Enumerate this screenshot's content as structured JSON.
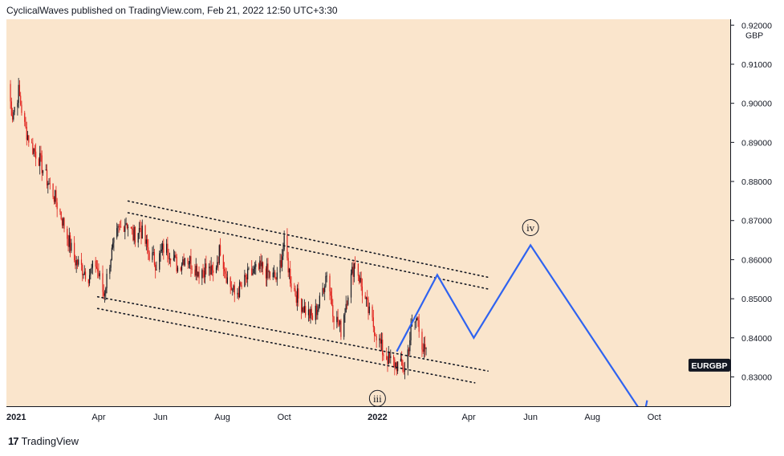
{
  "header": {
    "publisher_line": "CyclicalWaves published on TradingView.com, Feb 21, 2022 12:50 UTC+3:30"
  },
  "footer": {
    "brand": "TradingView",
    "logo_glyph": "17"
  },
  "colors": {
    "plot_background": "#fae5cc",
    "candle_up": "#131722",
    "candle_down": "#e0201b",
    "projection_line": "#2f63f0",
    "channel_lines": "#131722",
    "symbol_badge_bg": "#131722",
    "symbol_badge_text": "#ffffff"
  },
  "chart_data": {
    "type": "candlestick",
    "symbol": "EURGBP",
    "currency_unit": "GBP",
    "yaxis": {
      "range": [
        0.8225,
        0.9215
      ],
      "tick_values": [
        0.83,
        0.84,
        0.85,
        0.86,
        0.87,
        0.88,
        0.89,
        0.9,
        0.91,
        0.92
      ],
      "tick_labels": [
        "0.83000",
        "0.84000",
        "0.85000",
        "0.86000",
        "0.87000",
        "0.88000",
        "0.89000",
        "0.90000",
        "0.91000",
        "0.92000"
      ]
    },
    "xaxis": {
      "range": [
        "2020-12-31",
        "2022-12-15"
      ],
      "ticks": [
        {
          "label": "2021",
          "date": "2021-01-01",
          "bold": true
        },
        {
          "label": "Apr",
          "date": "2021-04-01",
          "bold": false
        },
        {
          "label": "Jun",
          "date": "2021-06-01",
          "bold": false
        },
        {
          "label": "Aug",
          "date": "2021-08-01",
          "bold": false
        },
        {
          "label": "Oct",
          "date": "2021-10-01",
          "bold": false
        },
        {
          "label": "2022",
          "date": "2022-01-01",
          "bold": true
        },
        {
          "label": "Apr",
          "date": "2022-04-01",
          "bold": false
        },
        {
          "label": "Jun",
          "date": "2022-06-01",
          "bold": false
        },
        {
          "label": "Aug",
          "date": "2022-08-01",
          "bold": false
        },
        {
          "label": "Oct",
          "date": "2022-10-01",
          "bold": false
        }
      ]
    },
    "price_path": [
      [
        "2021-01-01",
        0.905
      ],
      [
        "2021-01-06",
        0.897
      ],
      [
        "2021-01-12",
        0.903
      ],
      [
        "2021-01-18",
        0.894
      ],
      [
        "2021-01-25",
        0.889
      ],
      [
        "2021-02-01",
        0.886
      ],
      [
        "2021-02-08",
        0.881
      ],
      [
        "2021-02-15",
        0.877
      ],
      [
        "2021-02-22",
        0.872
      ],
      [
        "2021-03-01",
        0.866
      ],
      [
        "2021-03-08",
        0.86
      ],
      [
        "2021-03-15",
        0.858
      ],
      [
        "2021-03-22",
        0.856
      ],
      [
        "2021-03-29",
        0.859
      ],
      [
        "2021-04-06",
        0.851
      ],
      [
        "2021-04-13",
        0.861
      ],
      [
        "2021-04-20",
        0.867
      ],
      [
        "2021-04-28",
        0.87
      ],
      [
        "2021-05-05",
        0.866
      ],
      [
        "2021-05-12",
        0.868
      ],
      [
        "2021-05-20",
        0.862
      ],
      [
        "2021-05-28",
        0.859
      ],
      [
        "2021-06-04",
        0.863
      ],
      [
        "2021-06-11",
        0.862
      ],
      [
        "2021-06-18",
        0.858
      ],
      [
        "2021-06-25",
        0.861
      ],
      [
        "2021-07-02",
        0.859
      ],
      [
        "2021-07-09",
        0.857
      ],
      [
        "2021-07-16",
        0.858
      ],
      [
        "2021-07-23",
        0.856
      ],
      [
        "2021-07-30",
        0.863
      ],
      [
        "2021-08-06",
        0.855
      ],
      [
        "2021-08-13",
        0.851
      ],
      [
        "2021-08-20",
        0.853
      ],
      [
        "2021-08-27",
        0.856
      ],
      [
        "2021-09-03",
        0.857
      ],
      [
        "2021-09-10",
        0.858
      ],
      [
        "2021-09-17",
        0.856
      ],
      [
        "2021-09-24",
        0.855
      ],
      [
        "2021-10-01",
        0.864
      ],
      [
        "2021-10-08",
        0.854
      ],
      [
        "2021-10-15",
        0.85
      ],
      [
        "2021-10-22",
        0.847
      ],
      [
        "2021-10-29",
        0.845
      ],
      [
        "2021-11-05",
        0.849
      ],
      [
        "2021-11-12",
        0.857
      ],
      [
        "2021-11-19",
        0.846
      ],
      [
        "2021-11-26",
        0.842
      ],
      [
        "2021-12-03",
        0.852
      ],
      [
        "2021-12-10",
        0.86
      ],
      [
        "2021-12-17",
        0.852
      ],
      [
        "2021-12-24",
        0.846
      ],
      [
        "2021-12-31",
        0.841
      ],
      [
        "2022-01-07",
        0.836
      ],
      [
        "2022-01-14",
        0.834
      ],
      [
        "2022-01-21",
        0.833
      ],
      [
        "2022-01-28",
        0.832
      ],
      [
        "2022-02-04",
        0.843
      ],
      [
        "2022-02-10",
        0.845
      ],
      [
        "2022-02-15",
        0.837
      ],
      [
        "2022-02-21",
        0.834
      ]
    ],
    "projection_path": [
      [
        "2022-01-20",
        0.8365
      ],
      [
        "2022-03-01",
        0.8561
      ],
      [
        "2022-04-06",
        0.84
      ],
      [
        "2022-06-01",
        0.8637
      ],
      [
        "2022-09-21",
        0.82
      ],
      [
        "2022-09-24",
        0.824
      ]
    ],
    "channels": [
      {
        "name": "upper-outer",
        "start": [
          "2021-04-30",
          0.875
        ],
        "end": [
          "2022-04-20",
          0.8555
        ]
      },
      {
        "name": "upper-inner",
        "start": [
          "2021-04-30",
          0.872
        ],
        "end": [
          "2022-04-20",
          0.8525
        ]
      },
      {
        "name": "lower-inner",
        "start": [
          "2021-03-31",
          0.8505
        ],
        "end": [
          "2022-04-20",
          0.8315
        ]
      },
      {
        "name": "lower-outer",
        "start": [
          "2021-03-31",
          0.8475
        ],
        "end": [
          "2022-04-07",
          0.8285
        ]
      }
    ],
    "wave_labels": [
      {
        "text": "iii",
        "date": "2022-01-01",
        "value": 0.8245
      },
      {
        "text": "iv",
        "date": "2022-06-01",
        "value": 0.8682
      }
    ],
    "last_price_label": {
      "text": "EURGBP",
      "value": 0.833
    }
  }
}
